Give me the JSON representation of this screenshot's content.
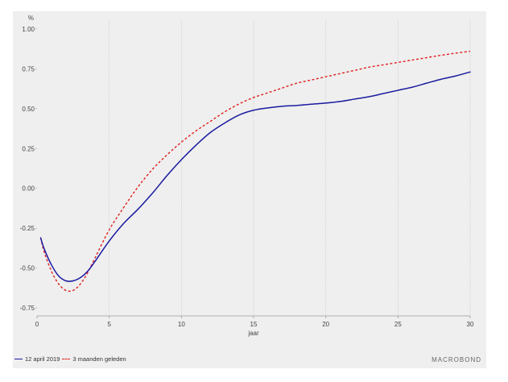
{
  "chart_data": {
    "type": "line",
    "ylabel": "%",
    "xlabel": "jaar",
    "xlim": [
      0,
      30
    ],
    "ylim": [
      -0.8,
      1.05
    ],
    "x_ticks": [
      "0",
      "5",
      "10",
      "15",
      "20",
      "25",
      "30"
    ],
    "y_ticks": [
      "1.00",
      "0.75",
      "0.50",
      "0.25",
      "0.00",
      "-0.25",
      "-0.50",
      "-0.75"
    ],
    "grid": "vertical",
    "legend_position": "bottom-left",
    "series": [
      {
        "name": "12 april 2019",
        "color": "#1a1aa0",
        "style": "solid",
        "x": [
          0.25,
          0.5,
          1,
          1.5,
          2,
          2.5,
          3,
          3.5,
          4,
          5,
          6,
          7,
          8,
          9,
          10,
          11,
          12,
          13,
          14,
          15,
          16,
          17,
          18,
          19,
          20,
          21,
          22,
          23,
          24,
          25,
          26,
          27,
          28,
          29,
          30
        ],
        "values": [
          -0.31,
          -0.38,
          -0.48,
          -0.55,
          -0.58,
          -0.58,
          -0.56,
          -0.52,
          -0.46,
          -0.33,
          -0.22,
          -0.13,
          -0.03,
          0.08,
          0.18,
          0.27,
          0.35,
          0.41,
          0.46,
          0.49,
          0.505,
          0.515,
          0.52,
          0.528,
          0.535,
          0.545,
          0.56,
          0.575,
          0.595,
          0.615,
          0.635,
          0.66,
          0.685,
          0.705,
          0.73
        ]
      },
      {
        "name": "3 maanden geleden",
        "color": "#e02020",
        "style": "dashed",
        "x": [
          0.25,
          0.5,
          1,
          1.5,
          2,
          2.5,
          3,
          3.5,
          4,
          5,
          6,
          7,
          8,
          9,
          10,
          11,
          12,
          13,
          14,
          15,
          16,
          17,
          18,
          19,
          20,
          21,
          22,
          23,
          24,
          25,
          26,
          27,
          28,
          29,
          30
        ],
        "values": [
          -0.31,
          -0.4,
          -0.52,
          -0.6,
          -0.64,
          -0.64,
          -0.6,
          -0.53,
          -0.44,
          -0.26,
          -0.12,
          0.01,
          0.12,
          0.21,
          0.29,
          0.36,
          0.42,
          0.48,
          0.53,
          0.57,
          0.6,
          0.63,
          0.66,
          0.68,
          0.7,
          0.72,
          0.74,
          0.76,
          0.775,
          0.79,
          0.805,
          0.82,
          0.835,
          0.848,
          0.86
        ]
      }
    ]
  },
  "brand": "MACROBOND"
}
